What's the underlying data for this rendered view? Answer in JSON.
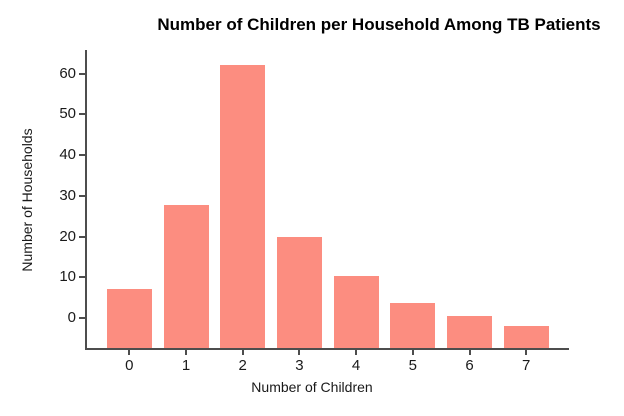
{
  "chart_data": {
    "type": "bar",
    "title": "Number of Children per Household Among TB Patients",
    "xlabel": "Number of Children",
    "ylabel": "Number of Households",
    "categories": [
      "0",
      "1",
      "2",
      "3",
      "4",
      "5",
      "6",
      "7"
    ],
    "values": [
      7.2,
      27.7,
      62.2,
      19.8,
      10.3,
      3.7,
      0.5,
      -2.1
    ],
    "yticks": [
      0,
      10,
      20,
      30,
      40,
      50,
      60
    ],
    "ylim": [
      -7.4,
      65.8
    ],
    "bars_baseline": -7.4,
    "grid": false,
    "colors": {
      "bar_fill": "#FC8D80",
      "axis": "#4D4D4D",
      "tick_text": "#1A1A1A",
      "title_text": "#000000",
      "background": "#FFFFFF"
    }
  }
}
